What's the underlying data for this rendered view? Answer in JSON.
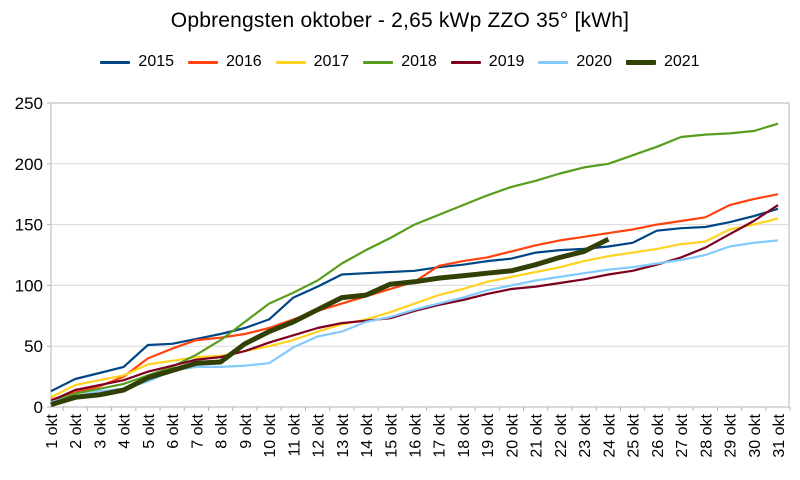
{
  "window": {
    "background": "#ffffff"
  },
  "chart_data": {
    "type": "line",
    "title": "Opbrengsten oktober - 2,65 kWp ZZO 35° [kWh]",
    "xlabel": "",
    "ylabel": "",
    "legend_position": "top",
    "grid": "horizontal",
    "axis_color": "#b3b3b3",
    "grid_color": "#d9d9d9",
    "y_axis": {
      "min": 0,
      "max": 250,
      "ticks": [
        0,
        50,
        100,
        150,
        200,
        250
      ]
    },
    "categories": [
      "1 okt",
      "2 okt",
      "3 okt",
      "4 okt",
      "5 okt",
      "6 okt",
      "7 okt",
      "8 okt",
      "9 okt",
      "10 okt",
      "11 okt",
      "12 okt",
      "13 okt",
      "14 okt",
      "15 okt",
      "16 okt",
      "17 okt",
      "18 okt",
      "19 okt",
      "20 okt",
      "21 okt",
      "22 okt",
      "23 okt",
      "24 okt",
      "25 okt",
      "26 okt",
      "27 okt",
      "28 okt",
      "29 okt",
      "30 okt",
      "31 okt"
    ],
    "series": [
      {
        "name": "2015",
        "color": "#004586",
        "line_width": 2.2,
        "values": [
          13,
          23,
          28,
          33,
          51,
          52,
          56,
          60,
          65,
          72,
          90,
          99,
          109,
          110,
          111,
          112,
          115,
          117,
          120,
          122,
          127,
          129,
          130,
          132,
          135,
          145,
          147,
          148,
          152,
          157,
          163
        ]
      },
      {
        "name": "2016",
        "color": "#ff420e",
        "line_width": 2.2,
        "values": [
          6,
          12,
          17,
          25,
          40,
          48,
          55,
          57,
          60,
          65,
          72,
          79,
          85,
          91,
          97,
          103,
          116,
          120,
          123,
          128,
          133,
          137,
          140,
          143,
          146,
          150,
          153,
          156,
          166,
          171,
          175
        ]
      },
      {
        "name": "2017",
        "color": "#ffd320",
        "line_width": 2.2,
        "values": [
          8,
          18,
          22,
          26,
          35,
          38,
          41,
          42,
          46,
          50,
          55,
          62,
          68,
          72,
          78,
          85,
          92,
          97,
          103,
          107,
          111,
          115,
          120,
          124,
          127,
          130,
          134,
          136,
          146,
          150,
          155
        ]
      },
      {
        "name": "2018",
        "color": "#579d1c",
        "line_width": 2.2,
        "values": [
          4,
          11,
          15,
          19,
          26,
          33,
          43,
          55,
          70,
          85,
          94,
          104,
          118,
          129,
          139,
          150,
          158,
          166,
          174,
          181,
          186,
          192,
          197,
          200,
          207,
          214,
          222,
          224,
          225,
          227,
          233
        ]
      },
      {
        "name": "2019",
        "color": "#7e0021",
        "line_width": 2.2,
        "values": [
          5,
          14,
          18,
          22,
          29,
          34,
          39,
          41,
          46,
          53,
          59,
          65,
          69,
          71,
          73,
          79,
          84,
          88,
          93,
          97,
          99,
          102,
          105,
          109,
          112,
          117,
          123,
          131,
          142,
          153,
          166
        ]
      },
      {
        "name": "2020",
        "color": "#83caff",
        "line_width": 2.2,
        "values": [
          4,
          9,
          13,
          15,
          21,
          30,
          33,
          33,
          34,
          36,
          49,
          58,
          62,
          70,
          74,
          80,
          85,
          90,
          96,
          100,
          104,
          107,
          110,
          113,
          115,
          118,
          121,
          125,
          132,
          135,
          137
        ]
      },
      {
        "name": "2021",
        "color": "#314004",
        "line_width": 5,
        "values": [
          2,
          8,
          10,
          14,
          24,
          30,
          36,
          37,
          52,
          62,
          70,
          80,
          90,
          92,
          101,
          103,
          106,
          108,
          110,
          112,
          117,
          123,
          128,
          138
        ]
      }
    ]
  }
}
